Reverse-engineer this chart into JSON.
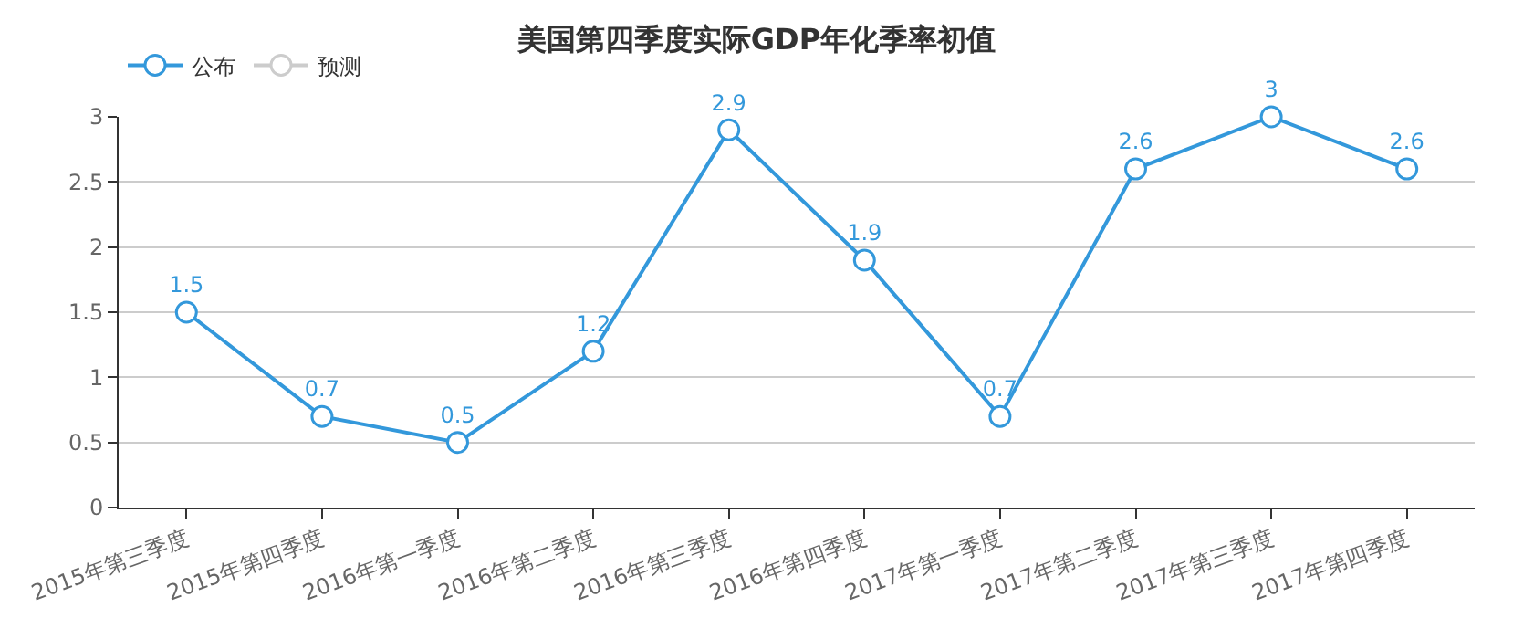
{
  "chart_data": {
    "type": "line",
    "title": "美国第四季度实际GDP年化季率初值",
    "categories": [
      "2015年第三季度",
      "2015年第四季度",
      "2016年第一季度",
      "2016年第二季度",
      "2016年第三季度",
      "2016年第四季度",
      "2017年第一季度",
      "2017年第二季度",
      "2017年第三季度",
      "2017年第四季度"
    ],
    "series": [
      {
        "name": "公布",
        "color": "#3398db",
        "values": [
          1.5,
          0.7,
          0.5,
          1.2,
          2.9,
          1.9,
          0.7,
          2.6,
          3,
          2.6
        ]
      },
      {
        "name": "预测",
        "color": "#cccccc",
        "values": [
          null,
          null,
          null,
          null,
          null,
          null,
          null,
          null,
          null,
          null
        ]
      }
    ],
    "ylim": [
      0,
      3
    ],
    "yticks": [
      0,
      0.5,
      1,
      1.5,
      2,
      2.5,
      3
    ],
    "grid": "y",
    "legend": "top left",
    "marker": "circle",
    "data_labels": true
  }
}
